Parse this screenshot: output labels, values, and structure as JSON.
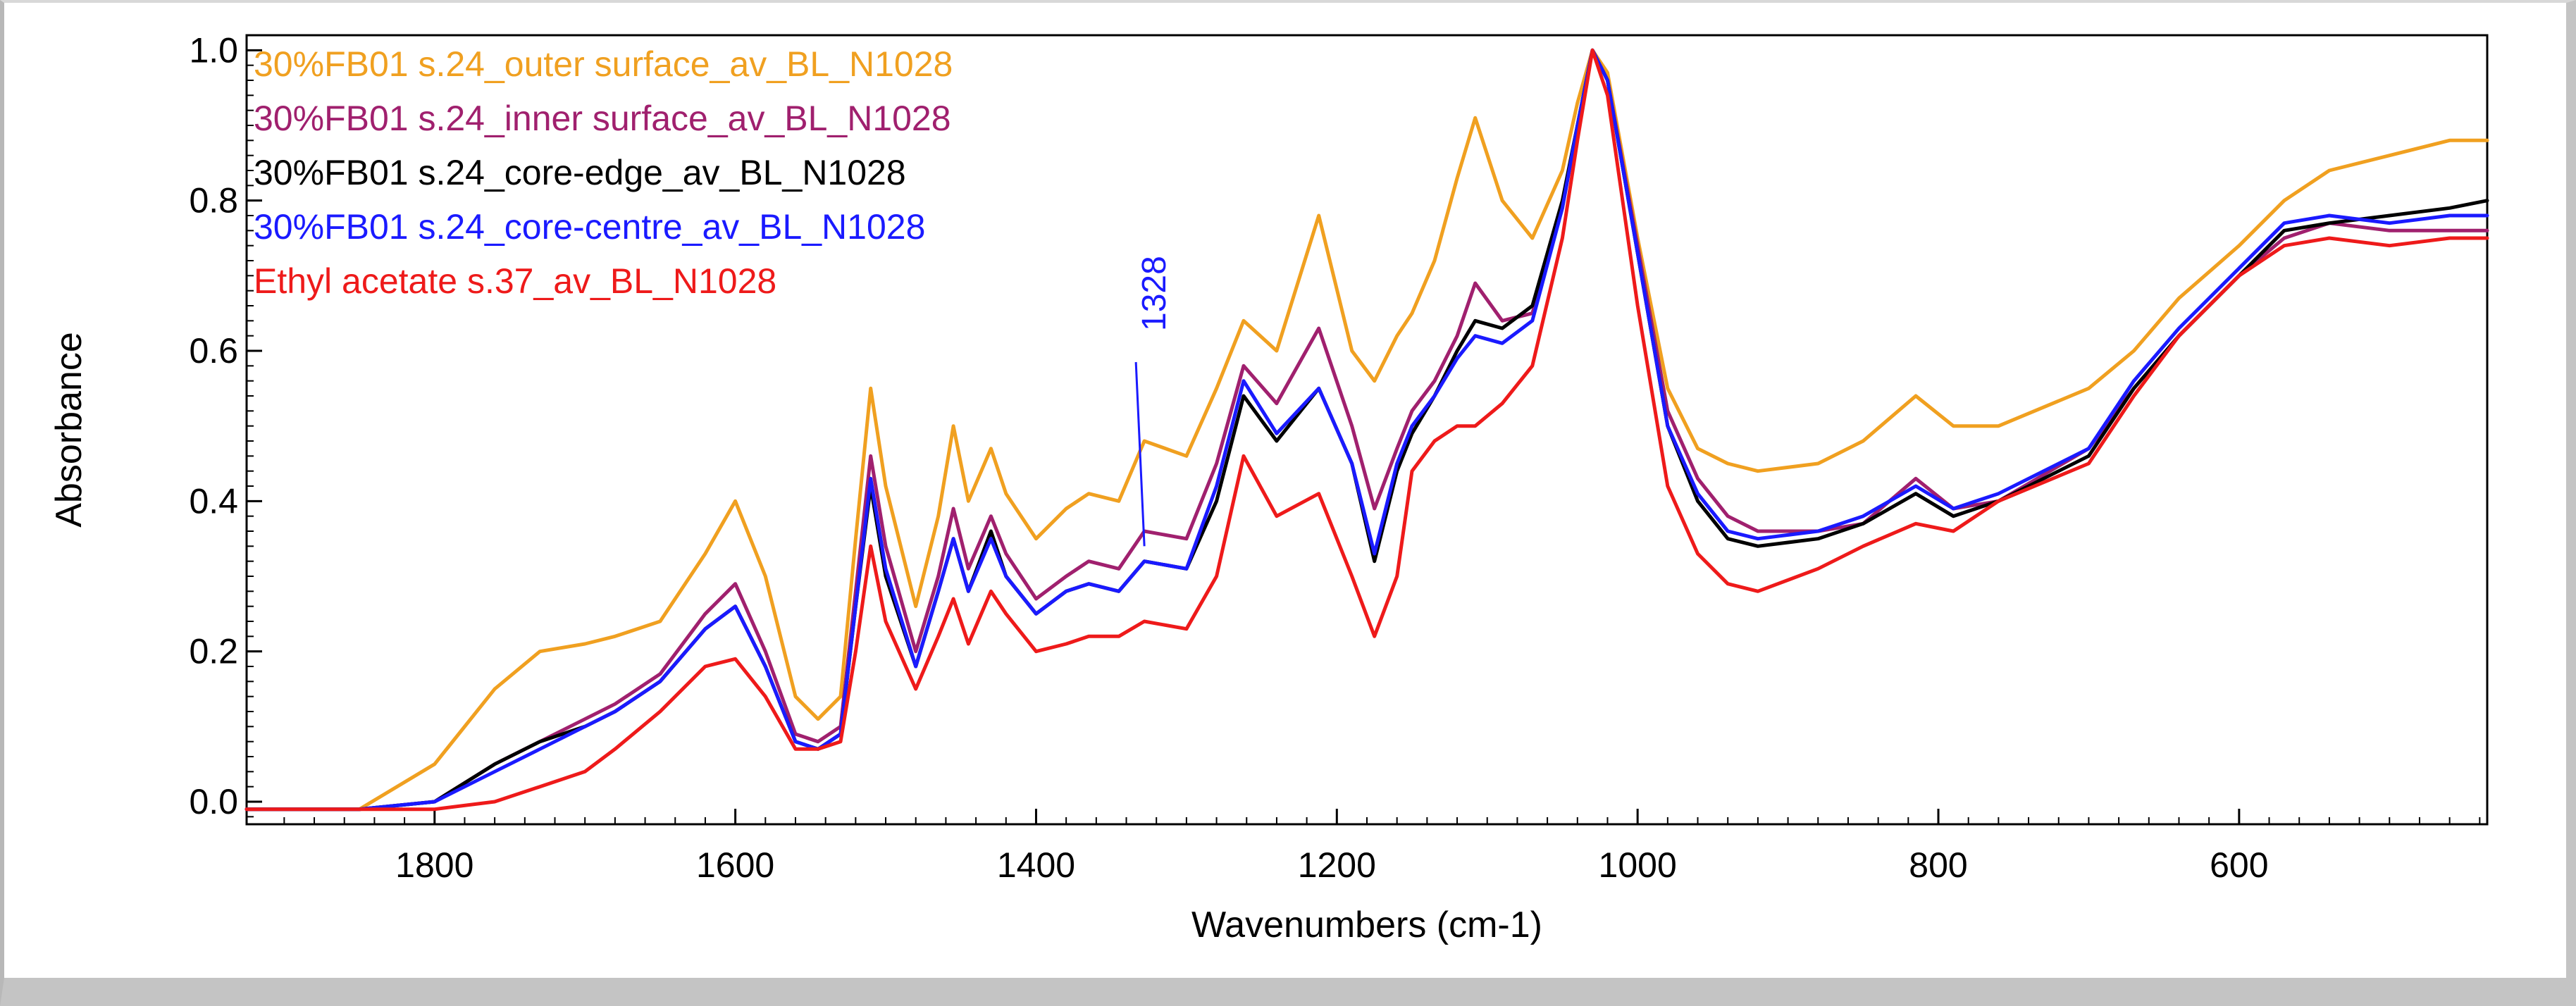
{
  "chart_data": {
    "type": "line",
    "title": "",
    "xlabel": "Wavenumbers (cm-1)",
    "ylabel": "Absorbance",
    "xlim": [
      1925,
      435
    ],
    "ylim": [
      -0.03,
      1.02
    ],
    "x_reversed": true,
    "x_ticks": [
      1800,
      1600,
      1400,
      1200,
      1000,
      800,
      600
    ],
    "x_tick_labels": [
      "1800",
      "1600",
      "1400",
      "1200",
      "1000",
      "800",
      "600"
    ],
    "y_ticks": [
      0.0,
      0.2,
      0.4,
      0.6,
      0.8,
      1.0
    ],
    "y_tick_labels": [
      "0.0",
      "0.2",
      "0.4",
      "0.6",
      "0.8",
      "1.0"
    ],
    "grid": false,
    "legend_position": "top-left",
    "annotations": [
      {
        "text": "1328",
        "x": 1328,
        "y": 0.34,
        "color": "#1a1aff"
      }
    ],
    "series": [
      {
        "name": "30%FB01 s.24_outer surface_av_BL_N1028",
        "color": "#f0a020",
        "x": [
          1925,
          1850,
          1800,
          1760,
          1730,
          1700,
          1680,
          1650,
          1620,
          1600,
          1580,
          1560,
          1545,
          1530,
          1520,
          1510,
          1500,
          1480,
          1465,
          1455,
          1445,
          1430,
          1420,
          1400,
          1380,
          1365,
          1345,
          1328,
          1300,
          1280,
          1262,
          1240,
          1212,
          1190,
          1175,
          1160,
          1150,
          1135,
          1120,
          1108,
          1090,
          1070,
          1050,
          1040,
          1030,
          1020,
          1000,
          980,
          960,
          940,
          920,
          880,
          850,
          815,
          790,
          760,
          700,
          670,
          640,
          600,
          570,
          540,
          500,
          460,
          435
        ],
        "values": [
          -0.01,
          -0.01,
          0.05,
          0.15,
          0.2,
          0.21,
          0.22,
          0.24,
          0.33,
          0.4,
          0.3,
          0.14,
          0.11,
          0.14,
          0.35,
          0.55,
          0.42,
          0.26,
          0.38,
          0.5,
          0.4,
          0.47,
          0.41,
          0.35,
          0.39,
          0.41,
          0.4,
          0.48,
          0.46,
          0.55,
          0.64,
          0.6,
          0.78,
          0.6,
          0.56,
          0.62,
          0.65,
          0.72,
          0.83,
          0.91,
          0.8,
          0.75,
          0.84,
          0.93,
          1.0,
          0.97,
          0.75,
          0.55,
          0.47,
          0.45,
          0.44,
          0.45,
          0.48,
          0.54,
          0.5,
          0.5,
          0.55,
          0.6,
          0.67,
          0.74,
          0.8,
          0.84,
          0.86,
          0.88,
          0.88
        ]
      },
      {
        "name": "30%FB01 s.24_inner surface_av_BL_N1028",
        "color": "#a0206e",
        "x": [
          1925,
          1850,
          1800,
          1760,
          1730,
          1700,
          1680,
          1650,
          1620,
          1600,
          1580,
          1560,
          1545,
          1530,
          1520,
          1510,
          1500,
          1480,
          1465,
          1455,
          1445,
          1430,
          1420,
          1400,
          1380,
          1365,
          1345,
          1328,
          1300,
          1280,
          1262,
          1240,
          1212,
          1190,
          1175,
          1160,
          1150,
          1135,
          1120,
          1108,
          1090,
          1070,
          1050,
          1040,
          1030,
          1020,
          1000,
          980,
          960,
          940,
          920,
          880,
          850,
          815,
          790,
          760,
          700,
          670,
          640,
          600,
          570,
          540,
          500,
          460,
          435
        ],
        "values": [
          -0.01,
          -0.01,
          0.0,
          0.05,
          0.08,
          0.11,
          0.13,
          0.17,
          0.25,
          0.29,
          0.2,
          0.09,
          0.08,
          0.1,
          0.28,
          0.46,
          0.34,
          0.2,
          0.3,
          0.39,
          0.31,
          0.38,
          0.33,
          0.27,
          0.3,
          0.32,
          0.31,
          0.36,
          0.35,
          0.45,
          0.58,
          0.53,
          0.63,
          0.5,
          0.39,
          0.47,
          0.52,
          0.56,
          0.62,
          0.69,
          0.64,
          0.65,
          0.79,
          0.9,
          1.0,
          0.96,
          0.74,
          0.52,
          0.43,
          0.38,
          0.36,
          0.36,
          0.37,
          0.43,
          0.39,
          0.4,
          0.47,
          0.55,
          0.62,
          0.7,
          0.75,
          0.77,
          0.76,
          0.76,
          0.76
        ]
      },
      {
        "name": "30%FB01 s.24_core-edge_av_BL_N1028",
        "color": "#000000",
        "x": [
          1925,
          1850,
          1800,
          1760,
          1730,
          1700,
          1680,
          1650,
          1620,
          1600,
          1580,
          1560,
          1545,
          1530,
          1520,
          1510,
          1500,
          1480,
          1465,
          1455,
          1445,
          1430,
          1420,
          1400,
          1380,
          1365,
          1345,
          1328,
          1300,
          1280,
          1262,
          1240,
          1212,
          1190,
          1175,
          1160,
          1150,
          1135,
          1120,
          1108,
          1090,
          1070,
          1050,
          1040,
          1030,
          1020,
          1000,
          980,
          960,
          940,
          920,
          880,
          850,
          815,
          790,
          760,
          700,
          670,
          640,
          600,
          570,
          540,
          500,
          460,
          435
        ],
        "values": [
          -0.01,
          -0.01,
          0.0,
          0.05,
          0.08,
          0.1,
          0.12,
          0.16,
          0.23,
          0.26,
          0.18,
          0.08,
          0.07,
          0.09,
          0.26,
          0.42,
          0.3,
          0.18,
          0.28,
          0.35,
          0.28,
          0.36,
          0.3,
          0.25,
          0.28,
          0.29,
          0.28,
          0.32,
          0.31,
          0.4,
          0.54,
          0.48,
          0.55,
          0.45,
          0.32,
          0.44,
          0.49,
          0.54,
          0.6,
          0.64,
          0.63,
          0.66,
          0.8,
          0.9,
          1.0,
          0.96,
          0.73,
          0.5,
          0.4,
          0.35,
          0.34,
          0.35,
          0.37,
          0.41,
          0.38,
          0.4,
          0.46,
          0.55,
          0.62,
          0.7,
          0.76,
          0.77,
          0.78,
          0.79,
          0.8
        ]
      },
      {
        "name": "30%FB01 s.24_core-centre_av_BL_N1028",
        "color": "#1a1aff",
        "x": [
          1925,
          1850,
          1800,
          1760,
          1730,
          1700,
          1680,
          1650,
          1620,
          1600,
          1580,
          1560,
          1545,
          1530,
          1520,
          1510,
          1500,
          1480,
          1465,
          1455,
          1445,
          1430,
          1420,
          1400,
          1380,
          1365,
          1345,
          1328,
          1300,
          1280,
          1262,
          1240,
          1212,
          1190,
          1175,
          1160,
          1150,
          1135,
          1120,
          1108,
          1090,
          1070,
          1050,
          1040,
          1030,
          1020,
          1000,
          980,
          960,
          940,
          920,
          880,
          850,
          815,
          790,
          760,
          700,
          670,
          640,
          600,
          570,
          540,
          500,
          460,
          435
        ],
        "values": [
          -0.01,
          -0.01,
          0.0,
          0.04,
          0.07,
          0.1,
          0.12,
          0.16,
          0.23,
          0.26,
          0.18,
          0.08,
          0.07,
          0.09,
          0.26,
          0.43,
          0.31,
          0.18,
          0.28,
          0.35,
          0.28,
          0.35,
          0.3,
          0.25,
          0.28,
          0.29,
          0.28,
          0.32,
          0.31,
          0.42,
          0.56,
          0.49,
          0.55,
          0.45,
          0.33,
          0.45,
          0.5,
          0.54,
          0.59,
          0.62,
          0.61,
          0.64,
          0.79,
          0.9,
          1.0,
          0.96,
          0.73,
          0.5,
          0.41,
          0.36,
          0.35,
          0.36,
          0.38,
          0.42,
          0.39,
          0.41,
          0.47,
          0.56,
          0.63,
          0.71,
          0.77,
          0.78,
          0.77,
          0.78,
          0.78
        ]
      },
      {
        "name": "Ethyl acetate s.37_av_BL_N1028",
        "color": "#ee1a1a",
        "x": [
          1925,
          1850,
          1800,
          1760,
          1730,
          1700,
          1680,
          1650,
          1620,
          1600,
          1580,
          1560,
          1545,
          1530,
          1520,
          1510,
          1500,
          1480,
          1465,
          1455,
          1445,
          1430,
          1420,
          1400,
          1380,
          1365,
          1345,
          1328,
          1300,
          1280,
          1262,
          1240,
          1212,
          1190,
          1175,
          1160,
          1150,
          1135,
          1120,
          1108,
          1090,
          1070,
          1050,
          1040,
          1030,
          1020,
          1000,
          980,
          960,
          940,
          920,
          880,
          850,
          815,
          790,
          760,
          700,
          670,
          640,
          600,
          570,
          540,
          500,
          460,
          435
        ],
        "values": [
          -0.01,
          -0.01,
          -0.01,
          0.0,
          0.02,
          0.04,
          0.07,
          0.12,
          0.18,
          0.19,
          0.14,
          0.07,
          0.07,
          0.08,
          0.2,
          0.34,
          0.24,
          0.15,
          0.22,
          0.27,
          0.21,
          0.28,
          0.25,
          0.2,
          0.21,
          0.22,
          0.22,
          0.24,
          0.23,
          0.3,
          0.46,
          0.38,
          0.41,
          0.3,
          0.22,
          0.3,
          0.44,
          0.48,
          0.5,
          0.5,
          0.53,
          0.58,
          0.75,
          0.88,
          1.0,
          0.94,
          0.66,
          0.42,
          0.33,
          0.29,
          0.28,
          0.31,
          0.34,
          0.37,
          0.36,
          0.4,
          0.45,
          0.54,
          0.62,
          0.7,
          0.74,
          0.75,
          0.74,
          0.75,
          0.75
        ]
      }
    ]
  }
}
